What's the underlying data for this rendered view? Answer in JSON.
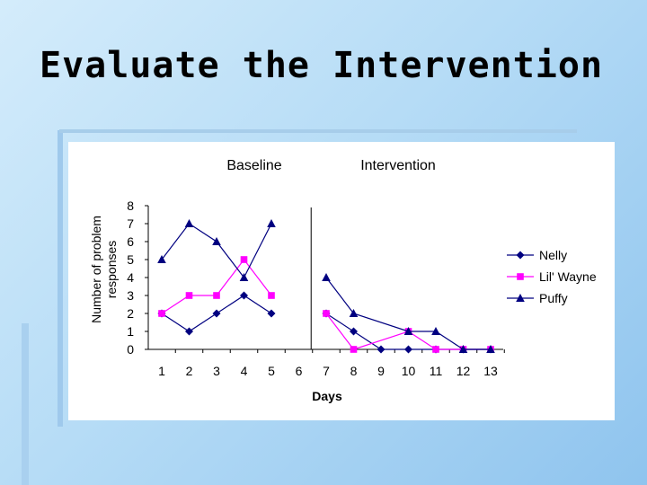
{
  "slide": {
    "title": "Evaluate the Intervention"
  },
  "chart_data": {
    "type": "line",
    "phase_labels": [
      "Baseline",
      "Intervention"
    ],
    "xlabel": "Days",
    "ylabel_lines": [
      "Number of problem",
      "responses"
    ],
    "x": [
      1,
      2,
      3,
      4,
      5,
      6,
      7,
      8,
      9,
      10,
      11,
      12,
      13
    ],
    "ylim": [
      0,
      8
    ],
    "yticks": [
      0,
      1,
      2,
      3,
      4,
      5,
      6,
      7,
      8
    ],
    "phase_change_after_day": 6,
    "series": [
      {
        "name": "Nelly",
        "color": "#000080",
        "marker": "diamond",
        "baseline": [
          [
            1,
            2
          ],
          [
            2,
            1
          ],
          [
            3,
            2
          ],
          [
            4,
            3
          ],
          [
            5,
            2
          ]
        ],
        "intervention": [
          [
            7,
            2
          ],
          [
            8,
            1
          ],
          [
            9,
            0
          ],
          [
            10,
            0
          ],
          [
            11,
            0
          ],
          [
            12,
            0
          ],
          [
            13,
            0
          ]
        ]
      },
      {
        "name": "Lil' Wayne",
        "color": "#ff00ff",
        "marker": "square",
        "baseline": [
          [
            1,
            2
          ],
          [
            2,
            3
          ],
          [
            3,
            3
          ],
          [
            4,
            5
          ],
          [
            5,
            3
          ]
        ],
        "intervention": [
          [
            7,
            2
          ],
          [
            8,
            0
          ],
          [
            10,
            1
          ],
          [
            11,
            0
          ],
          [
            12,
            0
          ],
          [
            13,
            0
          ]
        ]
      },
      {
        "name": "Puffy",
        "color": "#000080",
        "marker": "triangle",
        "baseline": [
          [
            1,
            5
          ],
          [
            2,
            7
          ],
          [
            3,
            6
          ],
          [
            4,
            4
          ],
          [
            5,
            7
          ]
        ],
        "intervention": [
          [
            7,
            4
          ],
          [
            8,
            2
          ],
          [
            10,
            1
          ],
          [
            11,
            1
          ],
          [
            12,
            0
          ],
          [
            13,
            0
          ]
        ]
      }
    ]
  }
}
